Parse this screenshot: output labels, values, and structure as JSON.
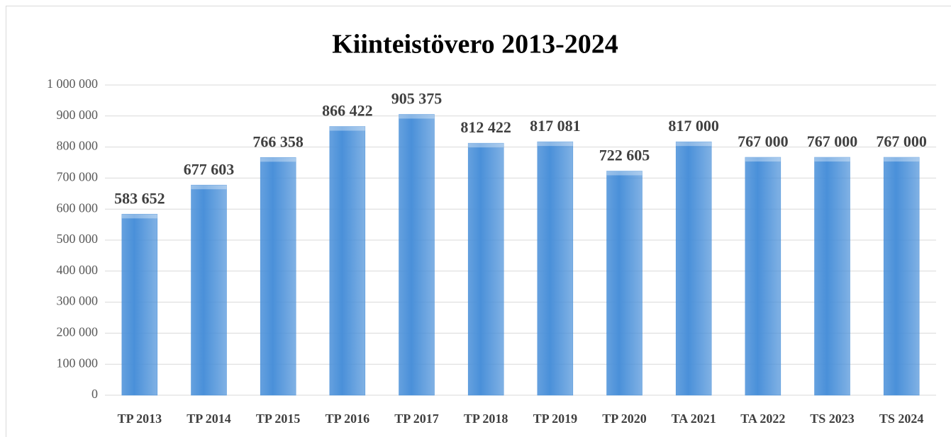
{
  "chart_data": {
    "type": "bar",
    "title": "Kiinteistövero 2013-2024",
    "categories": [
      "TP 2013",
      "TP 2014",
      "TP 2015",
      "TP 2016",
      "TP 2017",
      "TP 2018",
      "TP 2019",
      "TP 2020",
      "TA 2021",
      "TA 2022",
      "TS 2023",
      "TS 2024"
    ],
    "values": [
      583652,
      677603,
      766358,
      866422,
      905375,
      812422,
      817081,
      722605,
      817000,
      767000,
      767000,
      767000
    ],
    "value_labels": [
      "583 652",
      "677 603",
      "766 358",
      "866 422",
      "905 375",
      "812 422",
      "817 081",
      "722 605",
      "817 000",
      "767 000",
      "767 000",
      "767 000"
    ],
    "color": "#4a90d9",
    "ylim": [
      0,
      1000000
    ],
    "yticks": [
      0,
      {
        "value": 100000,
        "label": "100 000"
      },
      {
        "value": 200000,
        "label": "200 000"
      },
      {
        "value": 300000,
        "label": "300 000"
      },
      {
        "value": 400000,
        "label": "400 000"
      },
      {
        "value": 500000,
        "label": "500 000"
      },
      {
        "value": 600000,
        "label": "600 000"
      },
      {
        "value": 700000,
        "label": "700 000"
      },
      {
        "value": 800000,
        "label": "800 000"
      },
      {
        "value": 900000,
        "label": "900 000"
      },
      {
        "value": 1000000,
        "label": "1 000 000"
      }
    ],
    "grid": true
  }
}
